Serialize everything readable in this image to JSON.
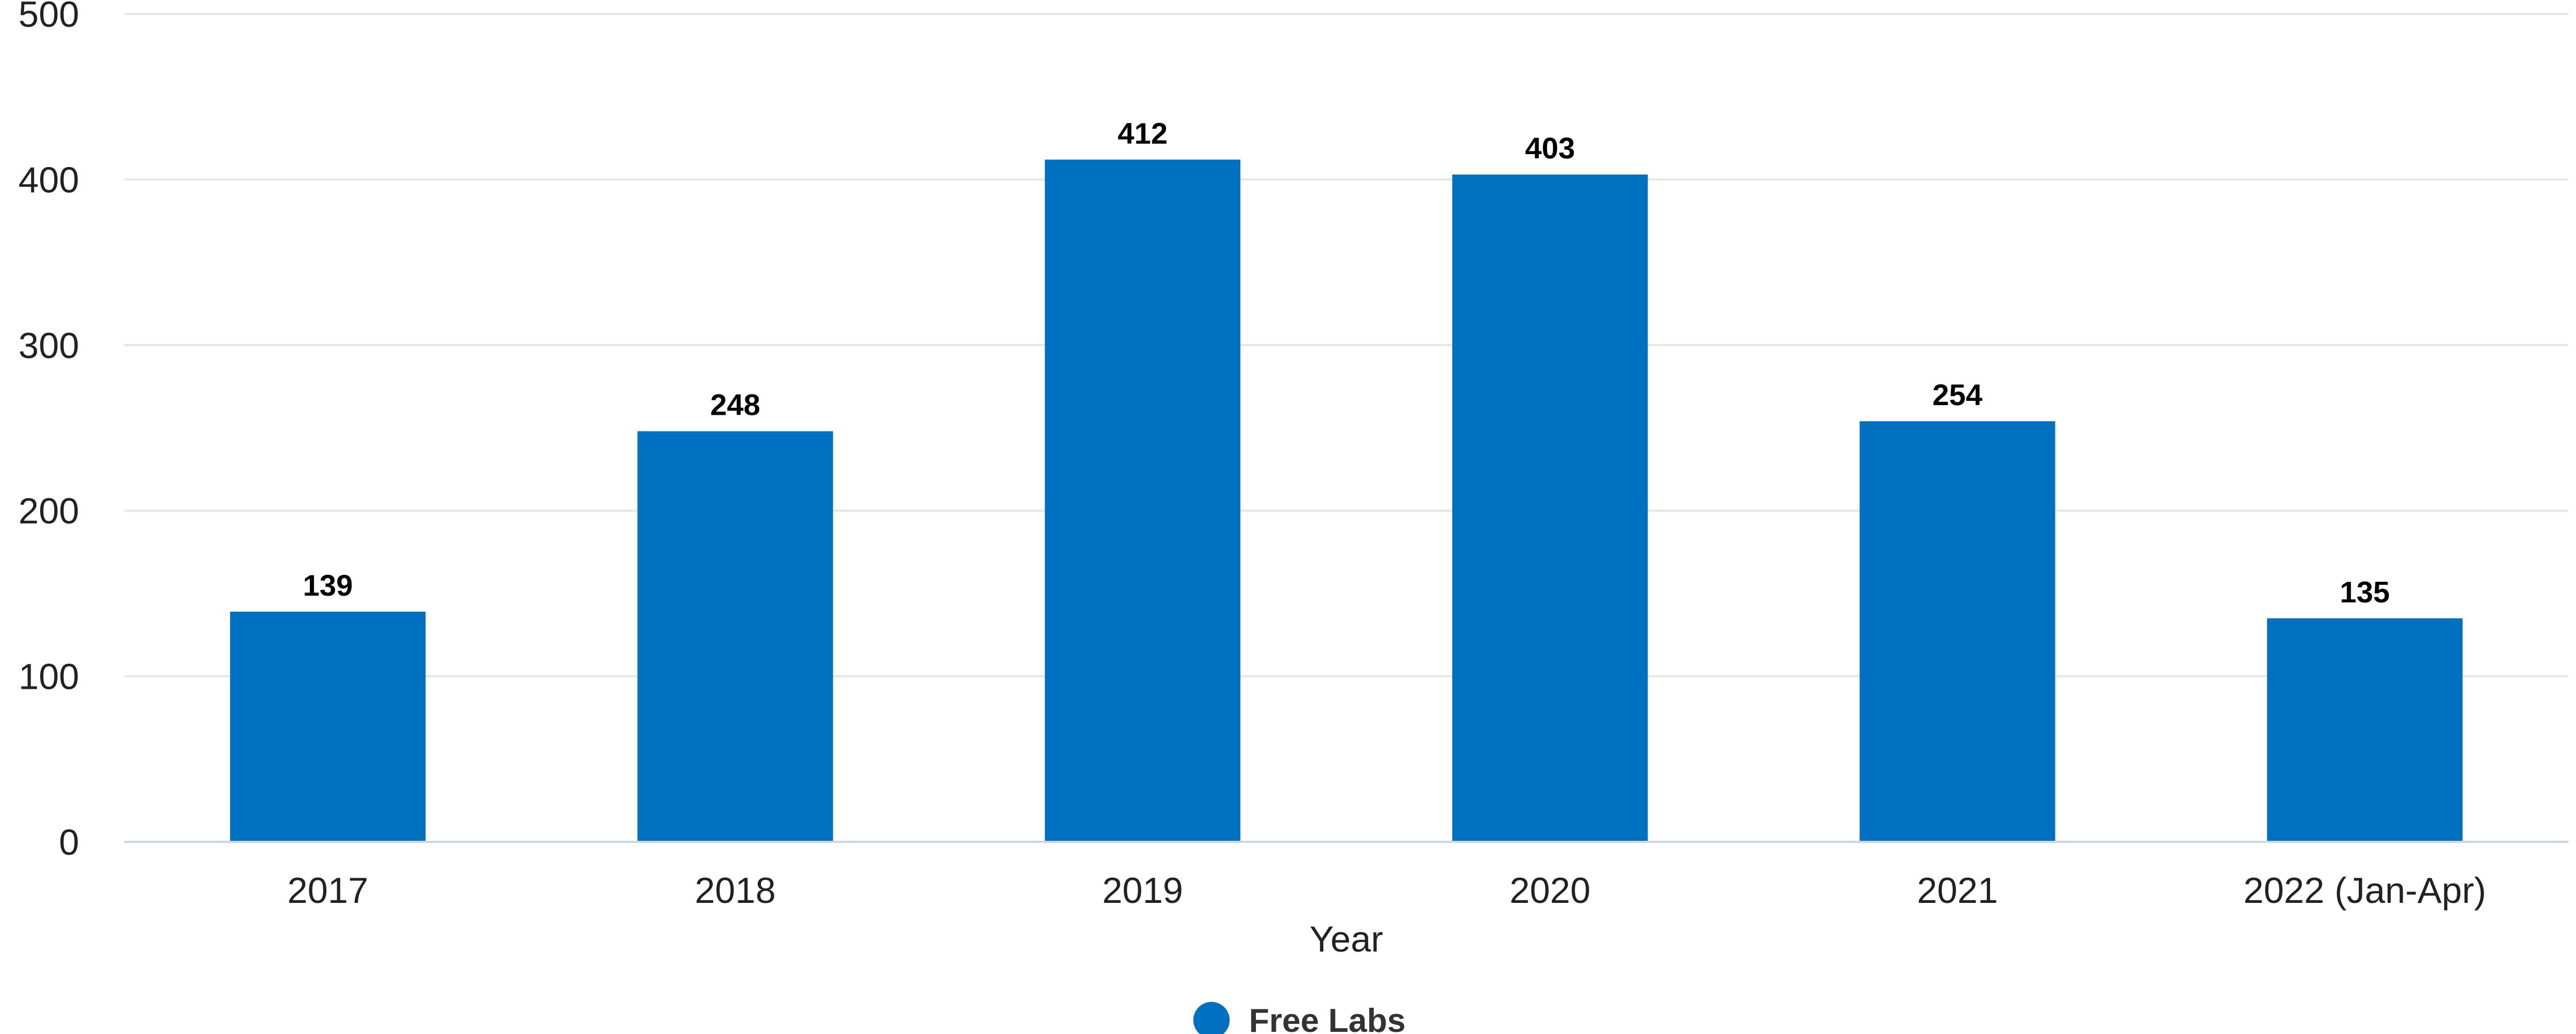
{
  "chart_data": {
    "type": "bar",
    "categories": [
      "2017",
      "2018",
      "2019",
      "2020",
      "2021",
      "2022 (Jan-Apr)"
    ],
    "series": [
      {
        "name": "Free Labs",
        "values": [
          139,
          248,
          412,
          403,
          254,
          135
        ],
        "color": "#0070C0"
      }
    ],
    "title": "",
    "xlabel": "Year",
    "ylabel": "",
    "ylim": [
      0,
      500
    ],
    "yticks": [
      "0",
      "100",
      "200",
      "300",
      "400",
      "500"
    ],
    "grid": true,
    "data_labels": true,
    "legend": {
      "position": "bottom-center",
      "label": "Free Labs"
    },
    "colors": {
      "bar": "#0070C0",
      "grid": "#e6e6e6",
      "axis": "#ccd6eb"
    }
  }
}
